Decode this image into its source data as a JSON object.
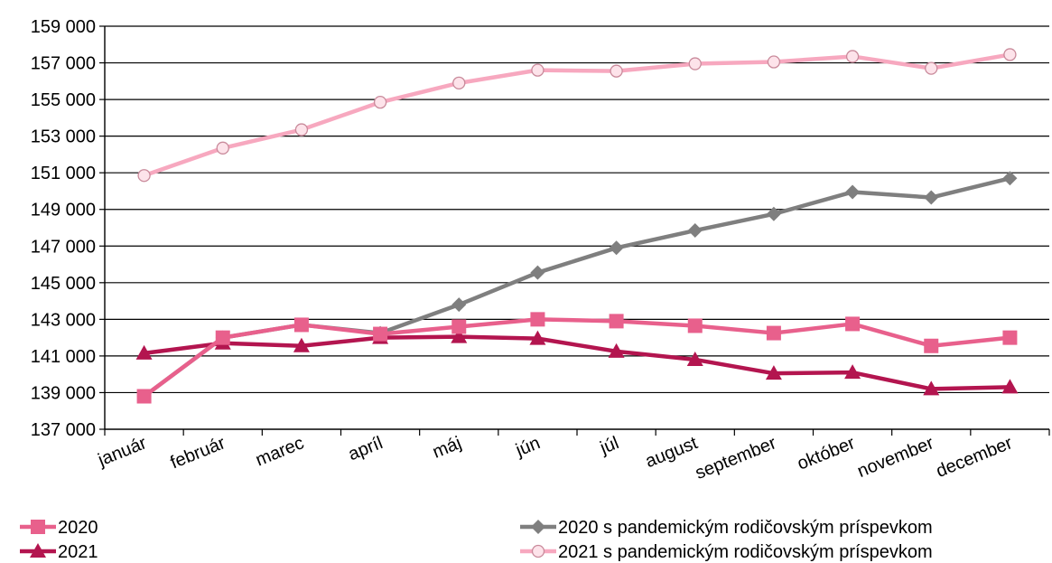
{
  "chart_data": {
    "type": "line",
    "title": "",
    "xlabel": "",
    "ylabel": "",
    "categories": [
      "január",
      "február",
      "marec",
      "apríl",
      "máj",
      "jún",
      "júl",
      "august",
      "september",
      "október",
      "november",
      "december"
    ],
    "ylim": [
      137000,
      159000
    ],
    "yticks": [
      137000,
      139000,
      141000,
      143000,
      145000,
      147000,
      149000,
      151000,
      153000,
      155000,
      157000,
      159000
    ],
    "ytick_labels": [
      "137 000",
      "139 000",
      "141 000",
      "143 000",
      "145 000",
      "147 000",
      "149 000",
      "151 000",
      "153 000",
      "155 000",
      "157 000",
      "159 000"
    ],
    "grid": true,
    "legend_position": "bottom",
    "series": [
      {
        "name": "2020",
        "color": "#e8608c",
        "marker": "square",
        "values": [
          138800,
          142000,
          142700,
          142200,
          142600,
          143000,
          142900,
          142650,
          142250,
          142750,
          141550,
          142000
        ]
      },
      {
        "name": "2021",
        "color": "#b3154f",
        "marker": "triangle",
        "values": [
          141150,
          141700,
          141550,
          142000,
          142050,
          141950,
          141250,
          140800,
          140050,
          140100,
          139200,
          139300
        ]
      },
      {
        "name": "2020 s pandemickým rodičovským príspevkom",
        "color": "#7f7f7f",
        "marker": "diamond",
        "values": [
          138800,
          142000,
          142700,
          142250,
          143800,
          145550,
          146900,
          147850,
          148750,
          149950,
          149650,
          150700
        ]
      },
      {
        "name": "2021 s pandemickým rodičovským príspevkom",
        "color": "#f7a8bf",
        "marker": "circle",
        "values": [
          150850,
          152350,
          153350,
          154850,
          155900,
          156600,
          156550,
          156950,
          157050,
          157350,
          156700,
          157450
        ]
      }
    ]
  }
}
